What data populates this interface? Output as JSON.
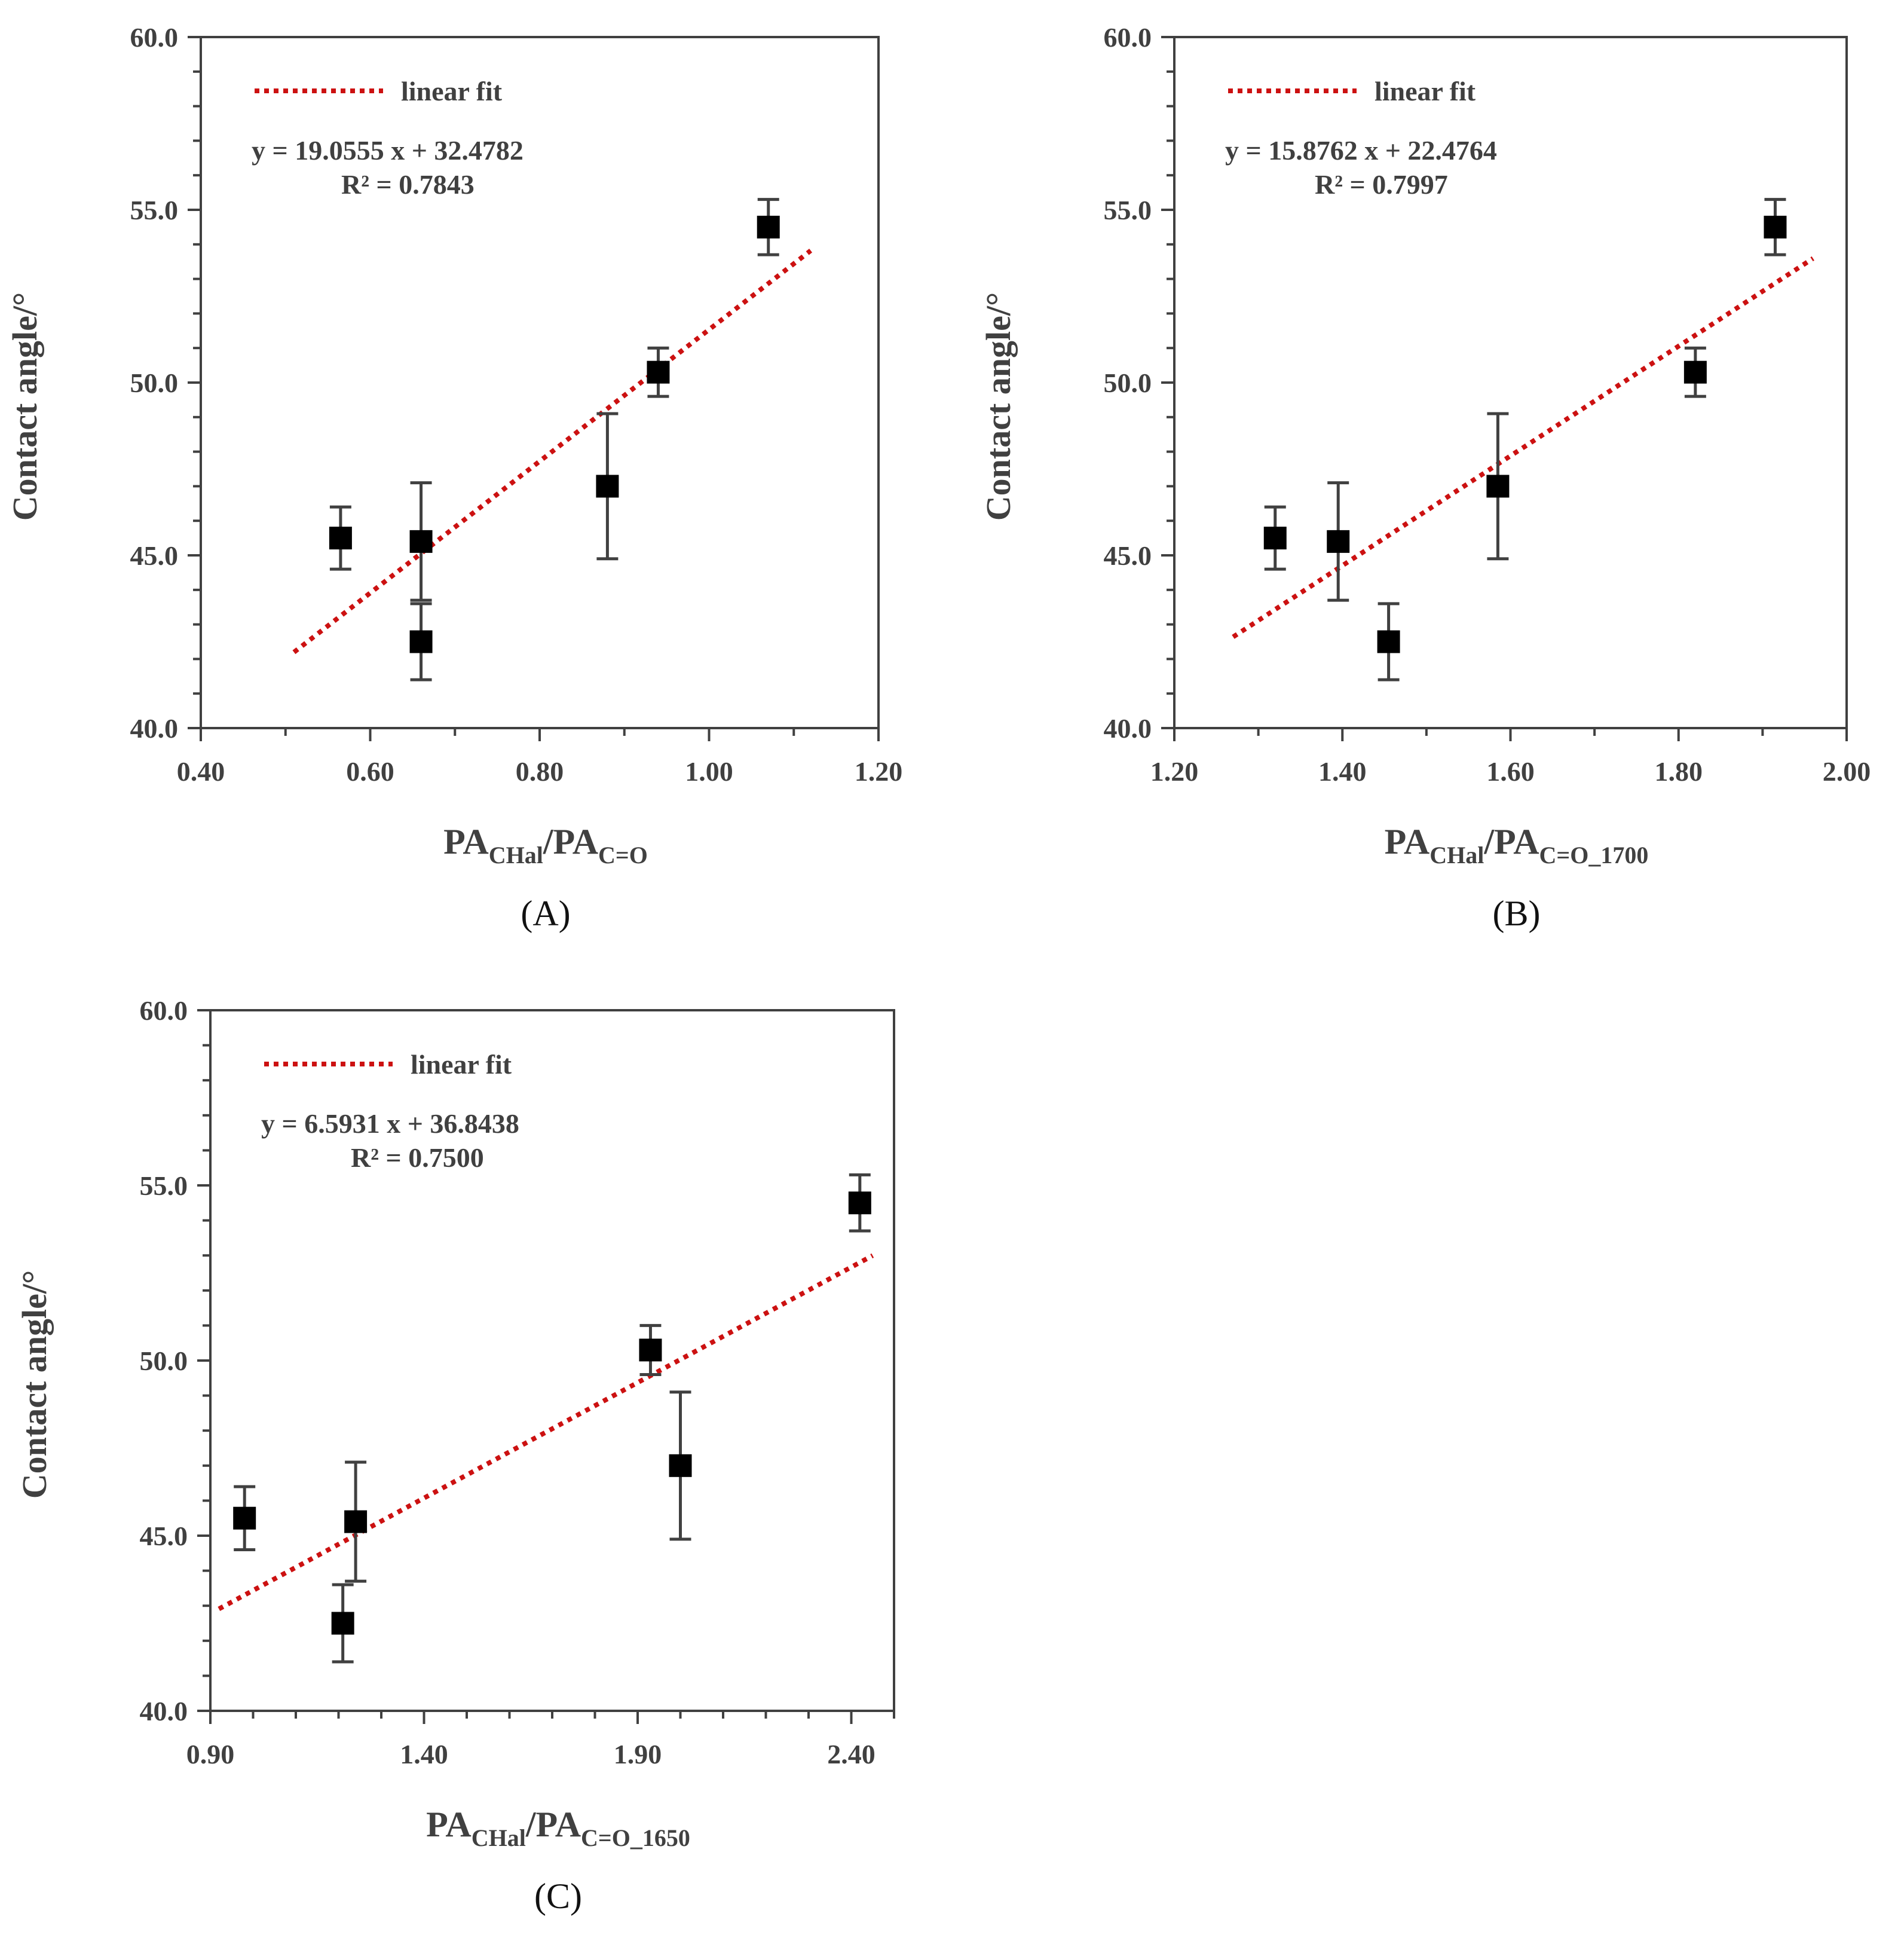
{
  "colors": {
    "axis": "#404040",
    "marker": "#000000",
    "fit": "#cc1111",
    "error": "#404040"
  },
  "chart_data": [
    {
      "type": "scatter",
      "panel_label": "(A)",
      "xlabel_main": "PA",
      "xlabel_sub1": "CHal",
      "xlabel_mid": "/PA",
      "xlabel_sub2": "C=O",
      "ylabel": "Contact angle/°",
      "xlim": [
        0.4,
        1.2
      ],
      "ylim": [
        40.0,
        60.0
      ],
      "xticks": [
        "0.40",
        "0.60",
        "0.80",
        "1.00",
        "1.20"
      ],
      "yticks": [
        "40.0",
        "45.0",
        "50.0",
        "55.0",
        "60.0"
      ],
      "x_minor_step": 0.1,
      "y_minor_step": 1,
      "legend": "linear fit",
      "equation": "y = 19.0555 x + 32.4782",
      "r2": "R² = 0.7843",
      "fit_range": [
        0.51,
        1.12
      ],
      "slope": 19.0555,
      "intercept": 32.4782,
      "points": [
        {
          "x": 0.565,
          "y": 45.5,
          "err": 0.9
        },
        {
          "x": 0.66,
          "y": 45.4,
          "err": 1.7
        },
        {
          "x": 0.66,
          "y": 42.5,
          "err": 1.1
        },
        {
          "x": 0.88,
          "y": 47.0,
          "err": 2.1
        },
        {
          "x": 0.94,
          "y": 50.3,
          "err": 0.7
        },
        {
          "x": 1.07,
          "y": 54.5,
          "err": 0.8
        }
      ]
    },
    {
      "type": "scatter",
      "panel_label": "(B)",
      "xlabel_main": "PA",
      "xlabel_sub1": "CHal",
      "xlabel_mid": "/PA",
      "xlabel_sub2": "C=O_1700",
      "ylabel": "Contact angle/°",
      "xlim": [
        1.2,
        2.0
      ],
      "ylim": [
        40.0,
        60.0
      ],
      "xticks": [
        "1.20",
        "1.40",
        "1.60",
        "1.80",
        "2.00"
      ],
      "yticks": [
        "40.0",
        "45.0",
        "50.0",
        "55.0",
        "60.0"
      ],
      "x_minor_step": 0.1,
      "y_minor_step": 1,
      "legend": "linear fit",
      "equation": "y = 15.8762 x + 22.4764",
      "r2": "R² = 0.7997",
      "fit_range": [
        1.27,
        1.96
      ],
      "slope": 15.8762,
      "intercept": 22.4764,
      "points": [
        {
          "x": 1.32,
          "y": 45.5,
          "err": 0.9
        },
        {
          "x": 1.395,
          "y": 45.4,
          "err": 1.7
        },
        {
          "x": 1.455,
          "y": 42.5,
          "err": 1.1
        },
        {
          "x": 1.585,
          "y": 47.0,
          "err": 2.1
        },
        {
          "x": 1.82,
          "y": 50.3,
          "err": 0.7
        },
        {
          "x": 1.915,
          "y": 54.5,
          "err": 0.8
        }
      ]
    },
    {
      "type": "scatter",
      "panel_label": "(C)",
      "xlabel_main": "PA",
      "xlabel_sub1": "CHal",
      "xlabel_mid": "/PA",
      "xlabel_sub2": "C=O_1650",
      "ylabel": "Contact angle/°",
      "xlim": [
        0.9,
        2.5
      ],
      "ylim": [
        40.0,
        60.0
      ],
      "xticks": [
        "0.90",
        "1.40",
        "1.90",
        "2.40"
      ],
      "yticks": [
        "40.0",
        "45.0",
        "50.0",
        "55.0",
        "60.0"
      ],
      "x_minor_step": 0.1,
      "y_minor_step": 1,
      "legend": "linear fit",
      "equation": "y = 6.5931 x + 36.8438",
      "r2": "R² = 0.7500",
      "fit_range": [
        0.92,
        2.45
      ],
      "slope": 6.5931,
      "intercept": 36.8438,
      "points": [
        {
          "x": 0.98,
          "y": 45.5,
          "err": 0.9
        },
        {
          "x": 1.24,
          "y": 45.4,
          "err": 1.7
        },
        {
          "x": 1.21,
          "y": 42.5,
          "err": 1.1
        },
        {
          "x": 1.93,
          "y": 50.3,
          "err": 0.7
        },
        {
          "x": 2.0,
          "y": 47.0,
          "err": 2.1
        },
        {
          "x": 2.42,
          "y": 54.5,
          "err": 0.8
        }
      ]
    }
  ]
}
